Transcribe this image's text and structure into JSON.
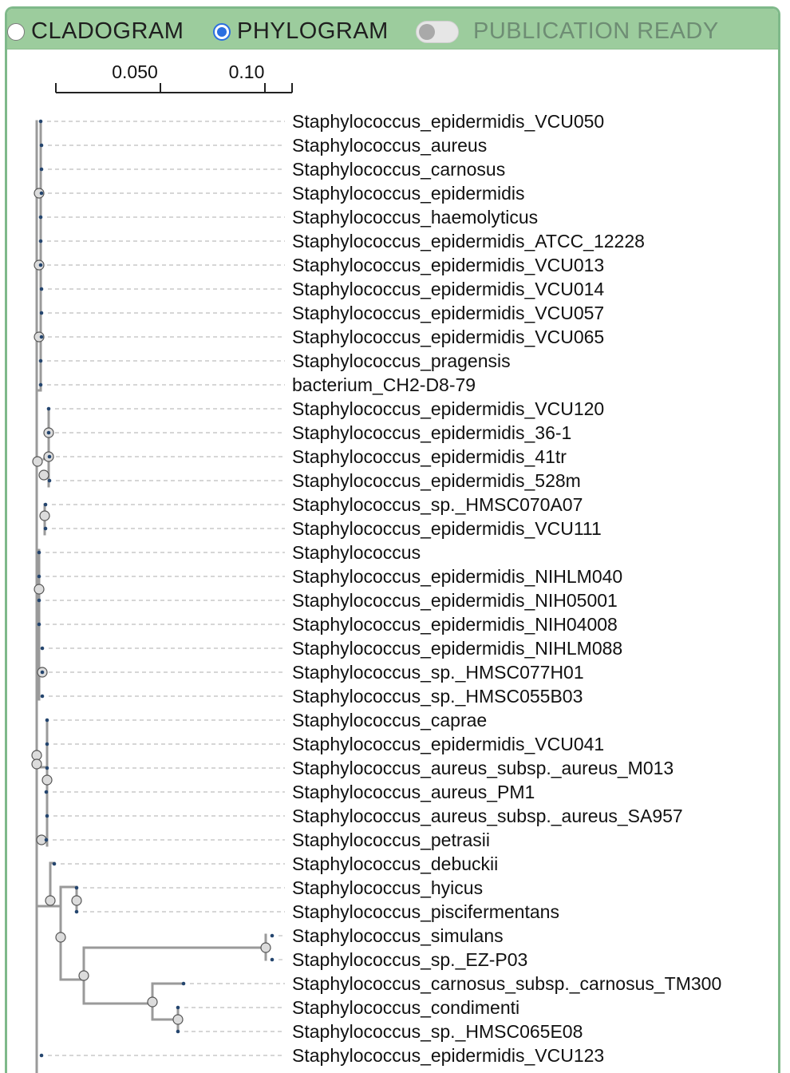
{
  "toolbar": {
    "cladogram_label": "CLADOGRAM",
    "phylogram_label": "PHYLOGRAM",
    "publication_label": "PUBLICATION READY",
    "selected_mode": "phylogram",
    "publication_ready": false,
    "bar_color": "#9ccc9d",
    "border_color": "#7fb98a",
    "radio_accent": "#2b6fe0"
  },
  "scale": {
    "ticks": [
      "0.050",
      "0.10"
    ]
  },
  "tree": {
    "branch_color": "#9a9a9a",
    "guide_color": "#bdbdbd",
    "tip_dot_color": "#24456e",
    "leaves": [
      "Staphylococcus_epidermidis_VCU050",
      "Staphylococcus_aureus",
      "Staphylococcus_carnosus",
      "Staphylococcus_epidermidis",
      "Staphylococcus_haemolyticus",
      "Staphylococcus_epidermidis_ATCC_12228",
      "Staphylococcus_epidermidis_VCU013",
      "Staphylococcus_epidermidis_VCU014",
      "Staphylococcus_epidermidis_VCU057",
      "Staphylococcus_epidermidis_VCU065",
      "Staphylococcus_pragensis",
      "bacterium_CH2-D8-79",
      "Staphylococcus_epidermidis_VCU120",
      "Staphylococcus_epidermidis_36-1",
      "Staphylococcus_epidermidis_41tr",
      "Staphylococcus_epidermidis_528m",
      "Staphylococcus_sp._HMSC070A07",
      "Staphylococcus_epidermidis_VCU111",
      "Staphylococcus",
      "Staphylococcus_epidermidis_NIHLM040",
      "Staphylococcus_epidermidis_NIH05001",
      "Staphylococcus_epidermidis_NIH04008",
      "Staphylococcus_epidermidis_NIHLM088",
      "Staphylococcus_sp._HMSC077H01",
      "Staphylococcus_sp._HMSC055B03",
      "Staphylococcus_caprae",
      "Staphylococcus_epidermidis_VCU041",
      "Staphylococcus_aureus_subsp._aureus_M013",
      "Staphylococcus_aureus_PM1",
      "Staphylococcus_aureus_subsp._aureus_SA957",
      "Staphylococcus_petrasii",
      "Staphylococcus_debuckii",
      "Staphylococcus_hyicus",
      "Staphylococcus_piscifermentans",
      "Staphylococcus_simulans",
      "Staphylococcus_sp._EZ-P03",
      "Staphylococcus_carnosus_subsp._carnosus_TM300",
      "Staphylococcus_condimenti",
      "Staphylococcus_sp._HMSC065E08",
      "Staphylococcus_epidermidis_VCU123"
    ]
  }
}
